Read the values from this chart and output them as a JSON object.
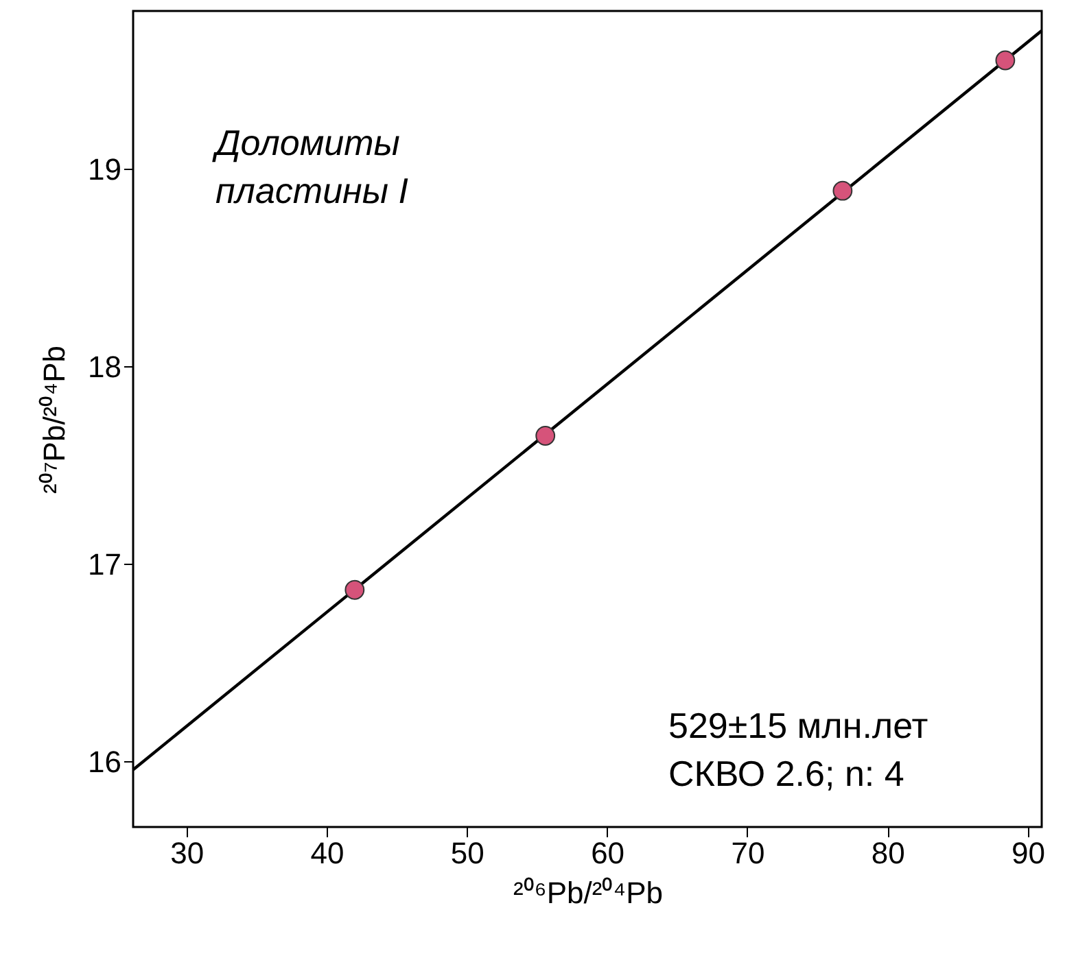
{
  "chart_data": {
    "type": "scatter",
    "xlabel": "²⁰⁶Pb/²⁰⁴Pb",
    "ylabel": "²⁰⁷Pb/²⁰⁴Pb",
    "xlim": [
      26.2,
      91
    ],
    "xticks": [
      30,
      40,
      50,
      60,
      70,
      80,
      90
    ],
    "ylim": [
      15.67,
      19.8
    ],
    "yticks": [
      16,
      17,
      18,
      19
    ],
    "grid": false,
    "annotations": [
      "Доломиты",
      "пластины I",
      "529±15 млн.лет",
      "СКВО 2.6; n: 4"
    ],
    "series": [
      {
        "type": "line",
        "color": "#000000",
        "x": [
          26.2,
          91
        ],
        "values": [
          15.96,
          19.7
        ]
      },
      {
        "marker": "circle",
        "color": "#d6537a",
        "x": [
          42,
          55.6,
          76.8,
          88.4
        ],
        "values": [
          16.87,
          17.65,
          18.89,
          19.55
        ]
      }
    ]
  }
}
